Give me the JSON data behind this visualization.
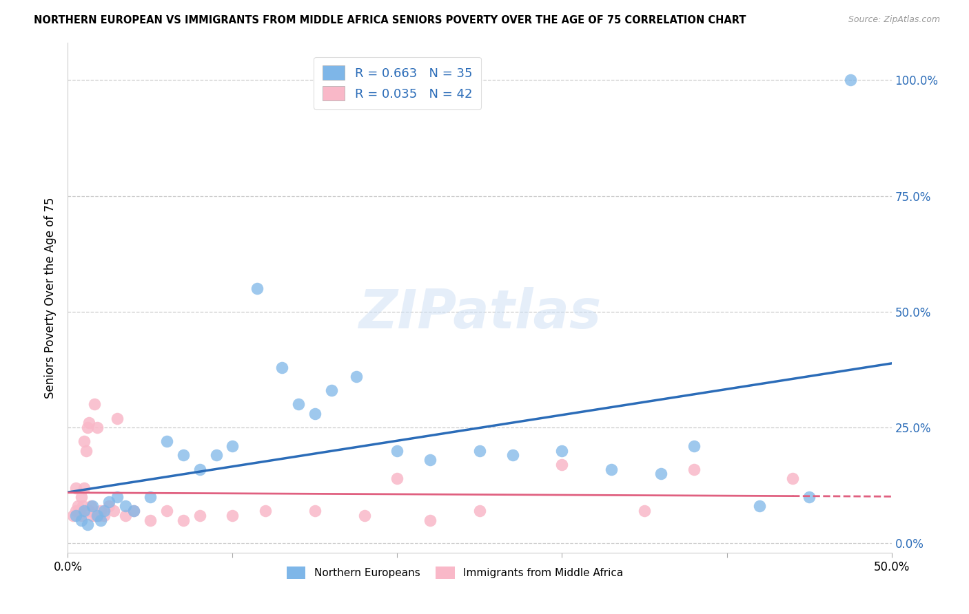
{
  "title": "NORTHERN EUROPEAN VS IMMIGRANTS FROM MIDDLE AFRICA SENIORS POVERTY OVER THE AGE OF 75 CORRELATION CHART",
  "source": "Source: ZipAtlas.com",
  "ylabel": "Seniors Poverty Over the Age of 75",
  "ytick_labels": [
    "0.0%",
    "25.0%",
    "50.0%",
    "75.0%",
    "100.0%"
  ],
  "ytick_values": [
    0,
    0.25,
    0.5,
    0.75,
    1.0
  ],
  "xlim": [
    0.0,
    0.5
  ],
  "ylim": [
    -0.02,
    1.08
  ],
  "legend_r1": "R = 0.663",
  "legend_n1": "N = 35",
  "legend_r2": "R = 0.035",
  "legend_n2": "N = 42",
  "blue_color": "#7EB6E8",
  "pink_color": "#F9B8C8",
  "blue_line_color": "#2B6CB8",
  "pink_line_color": "#E06080",
  "watermark": "ZIPatlas",
  "ne_x": [
    0.005,
    0.008,
    0.01,
    0.012,
    0.015,
    0.018,
    0.02,
    0.022,
    0.025,
    0.03,
    0.035,
    0.04,
    0.05,
    0.06,
    0.07,
    0.08,
    0.09,
    0.1,
    0.115,
    0.13,
    0.14,
    0.15,
    0.16,
    0.175,
    0.2,
    0.22,
    0.25,
    0.27,
    0.3,
    0.33,
    0.36,
    0.38,
    0.42,
    0.45,
    0.475
  ],
  "ne_y": [
    0.06,
    0.05,
    0.07,
    0.04,
    0.08,
    0.06,
    0.05,
    0.07,
    0.09,
    0.1,
    0.08,
    0.07,
    0.1,
    0.22,
    0.19,
    0.16,
    0.19,
    0.21,
    0.55,
    0.38,
    0.3,
    0.28,
    0.33,
    0.36,
    0.2,
    0.18,
    0.2,
    0.19,
    0.2,
    0.16,
    0.15,
    0.21,
    0.08,
    0.1,
    1.0
  ],
  "ma_x": [
    0.003,
    0.005,
    0.005,
    0.006,
    0.007,
    0.008,
    0.008,
    0.009,
    0.01,
    0.01,
    0.011,
    0.012,
    0.013,
    0.013,
    0.014,
    0.015,
    0.016,
    0.017,
    0.018,
    0.019,
    0.02,
    0.022,
    0.025,
    0.028,
    0.03,
    0.035,
    0.04,
    0.05,
    0.06,
    0.07,
    0.08,
    0.1,
    0.12,
    0.15,
    0.18,
    0.2,
    0.22,
    0.25,
    0.3,
    0.35,
    0.38,
    0.44
  ],
  "ma_y": [
    0.06,
    0.07,
    0.12,
    0.08,
    0.07,
    0.1,
    0.06,
    0.08,
    0.22,
    0.12,
    0.2,
    0.25,
    0.07,
    0.26,
    0.08,
    0.06,
    0.3,
    0.06,
    0.25,
    0.06,
    0.07,
    0.06,
    0.08,
    0.07,
    0.27,
    0.06,
    0.07,
    0.05,
    0.07,
    0.05,
    0.06,
    0.06,
    0.07,
    0.07,
    0.06,
    0.14,
    0.05,
    0.07,
    0.17,
    0.07,
    0.16,
    0.14
  ]
}
